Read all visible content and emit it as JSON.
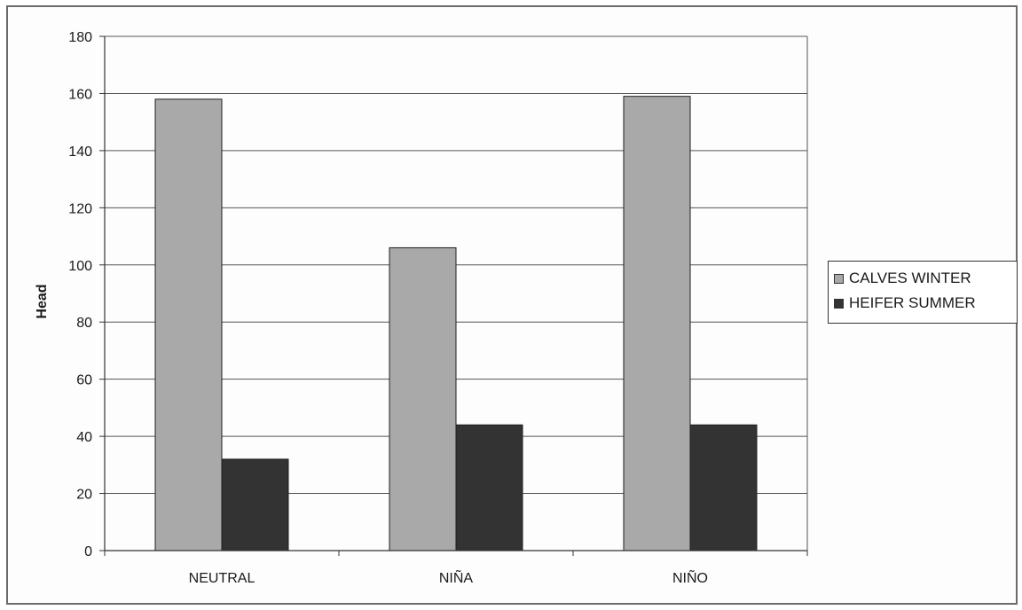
{
  "chart_data": {
    "type": "bar",
    "title": "",
    "xlabel": "",
    "ylabel": "Head",
    "categories": [
      "NEUTRAL",
      "NIÑA",
      "NIÑO"
    ],
    "series": [
      {
        "name": "CALVES WINTER",
        "values": [
          158,
          106,
          159
        ],
        "color": "#a9a9a9"
      },
      {
        "name": "HEIFER SUMMER",
        "values": [
          32,
          44,
          44
        ],
        "color": "#333333"
      }
    ],
    "ylim": [
      0,
      180
    ],
    "yticks": [
      0,
      20,
      40,
      60,
      80,
      100,
      120,
      140,
      160,
      180
    ],
    "grid": true,
    "legend": "right"
  }
}
